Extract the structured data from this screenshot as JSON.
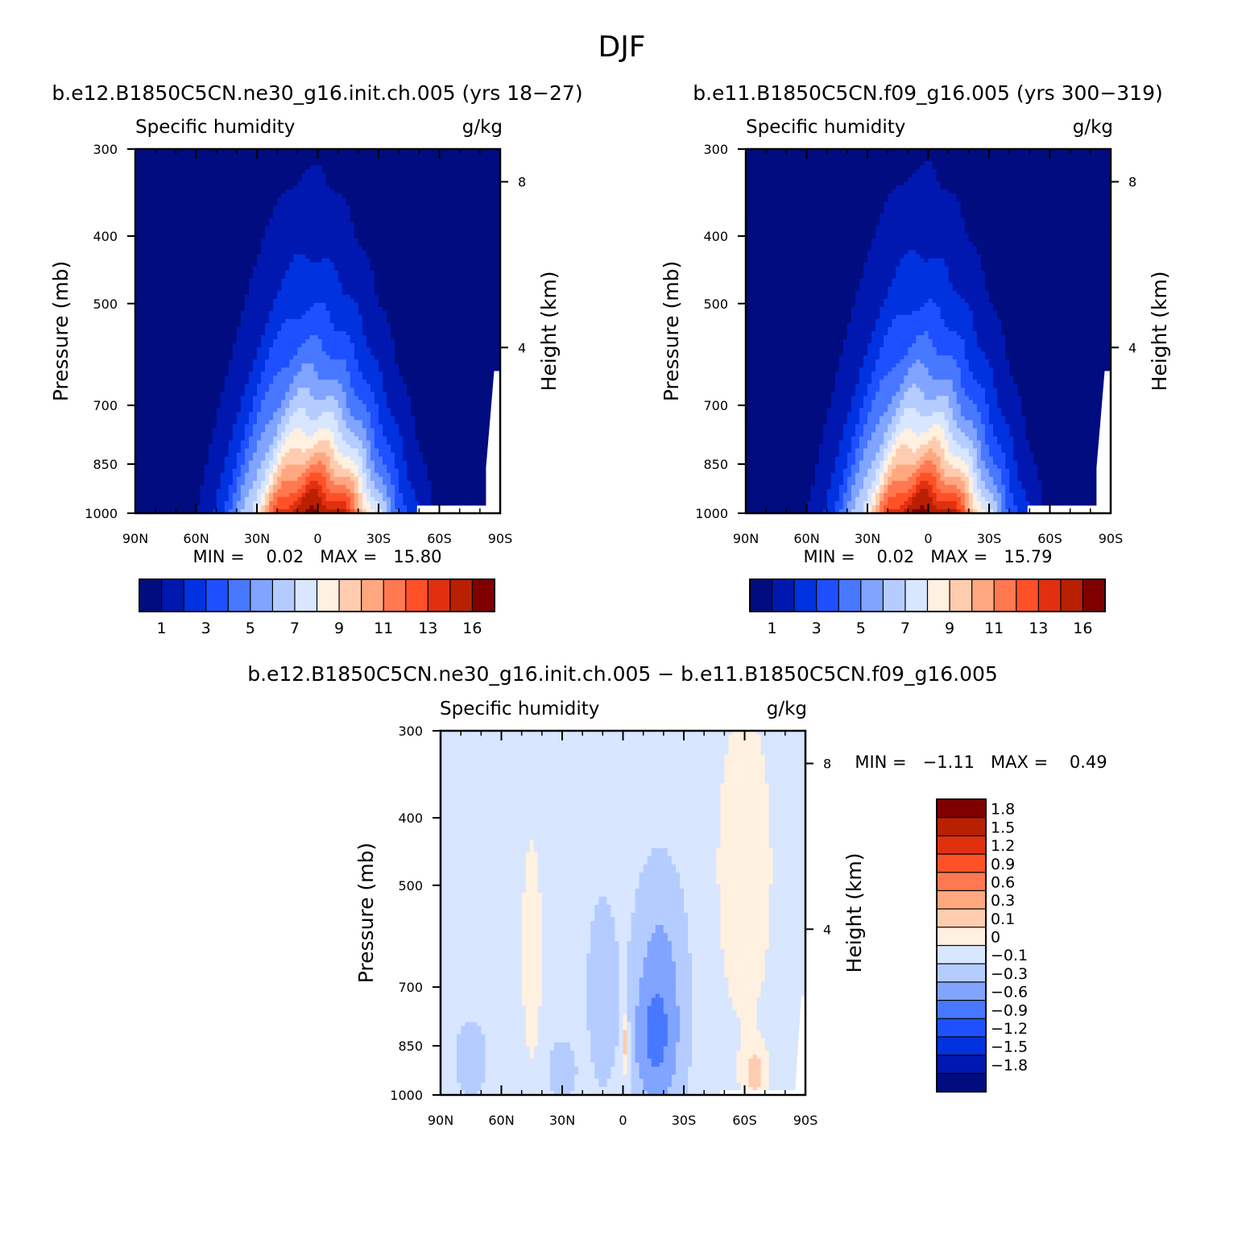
{
  "figure_title": "DJF",
  "palette": {
    "abs": [
      "#000c80",
      "#0018b0",
      "#0032e0",
      "#1e50ff",
      "#4878ff",
      "#80a4ff",
      "#b4ccff",
      "#d8e6ff",
      "#fff0e0",
      "#ffccb0",
      "#ffa880",
      "#ff7850",
      "#ff5028",
      "#e03010",
      "#b82000",
      "#800000"
    ],
    "abs_labels": [
      "1",
      "3",
      "5",
      "7",
      "9",
      "11",
      "13",
      "16"
    ],
    "diff": [
      "#000c80",
      "#0018b0",
      "#0032e0",
      "#1e50ff",
      "#4878ff",
      "#80a4ff",
      "#b4ccff",
      "#d8e6ff",
      "#fff0e0",
      "#ffccb0",
      "#ffa880",
      "#ff7850",
      "#ff5028",
      "#e03010",
      "#b82000",
      "#800000"
    ],
    "diff_labels": [
      "1.8",
      "1.5",
      "1.2",
      "0.9",
      "0.6",
      "0.3",
      "0.1",
      "0",
      "−0.1",
      "−0.3",
      "−0.6",
      "−0.9",
      "−1.2",
      "−1.5",
      "−1.8"
    ]
  },
  "chart_data": [
    {
      "type": "heatmap",
      "title": "b.e12.B1850C5CN.ne30_g16.init.ch.005 (yrs 18−27)",
      "subtitle_left": "Specific humidity",
      "subtitle_right": "g/kg",
      "xlabel": "",
      "ylabel": "Pressure (mb)",
      "y2label": "Height (km)",
      "x_ticks": [
        "90N",
        "60N",
        "30N",
        "0",
        "30S",
        "60S",
        "90S"
      ],
      "y_ticks": [
        "300",
        "400",
        "500",
        "700",
        "850",
        "1000"
      ],
      "y2_ticks": [
        "8",
        "4"
      ],
      "xlim": [
        90,
        -90
      ],
      "ylim": [
        1000,
        300
      ],
      "stats": "MIN =    0.02   MAX =   15.80",
      "min": 0.02,
      "max": 15.8,
      "colorbar_levels": [
        1,
        2,
        3,
        4,
        5,
        6,
        7,
        8,
        9,
        10,
        11,
        12,
        13,
        14,
        16
      ]
    },
    {
      "type": "heatmap",
      "title": "b.e11.B1850C5CN.f09_g16.005 (yrs 300−319)",
      "subtitle_left": "Specific humidity",
      "subtitle_right": "g/kg",
      "xlabel": "",
      "ylabel": "Pressure (mb)",
      "y2label": "Height (km)",
      "x_ticks": [
        "90N",
        "60N",
        "30N",
        "0",
        "30S",
        "60S",
        "90S"
      ],
      "y_ticks": [
        "300",
        "400",
        "500",
        "700",
        "850",
        "1000"
      ],
      "y2_ticks": [
        "8",
        "4"
      ],
      "xlim": [
        90,
        -90
      ],
      "ylim": [
        1000,
        300
      ],
      "stats": "MIN =    0.02   MAX =   15.79",
      "min": 0.02,
      "max": 15.79,
      "colorbar_levels": [
        1,
        2,
        3,
        4,
        5,
        6,
        7,
        8,
        9,
        10,
        11,
        12,
        13,
        14,
        16
      ]
    },
    {
      "type": "heatmap",
      "title": "b.e12.B1850C5CN.ne30_g16.init.ch.005 − b.e11.B1850C5CN.f09_g16.005",
      "subtitle_left": "Specific humidity",
      "subtitle_right": "g/kg",
      "xlabel": "",
      "ylabel": "Pressure (mb)",
      "y2label": "Height (km)",
      "x_ticks": [
        "90N",
        "60N",
        "30N",
        "0",
        "30S",
        "60S",
        "90S"
      ],
      "y_ticks": [
        "300",
        "400",
        "500",
        "700",
        "850",
        "1000"
      ],
      "y2_ticks": [
        "8",
        "4"
      ],
      "xlim": [
        90,
        -90
      ],
      "ylim": [
        1000,
        300
      ],
      "stats": "MIN =   −1.11   MAX =    0.49",
      "min": -1.11,
      "max": 0.49,
      "colorbar_levels": [
        -1.8,
        -1.5,
        -1.2,
        -0.9,
        -0.6,
        -0.3,
        -0.1,
        0,
        0.1,
        0.3,
        0.6,
        0.9,
        1.2,
        1.5,
        1.8
      ]
    }
  ]
}
